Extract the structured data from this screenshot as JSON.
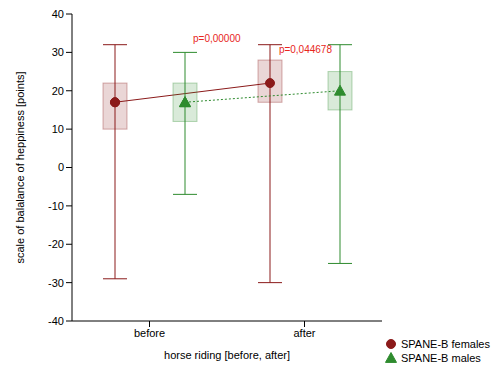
{
  "chart_data": {
    "type": "box",
    "x_label": "horse riding [before, after]",
    "y_label": "scale of balalance of heppiness [points]",
    "categories": [
      "before",
      "after"
    ],
    "ylim": [
      -40,
      40
    ],
    "yticks": [
      -40,
      -30,
      -20,
      -10,
      0,
      10,
      20,
      30,
      40
    ],
    "grid": false,
    "legend": "bottom right",
    "series": [
      {
        "name": "SPANE-B females",
        "color": "#8b1a1a",
        "marker": "circle",
        "line_style": "solid",
        "mean": [
          17,
          22
        ],
        "q1": [
          10,
          17
        ],
        "q3": [
          22,
          28
        ],
        "min": [
          -29,
          -30
        ],
        "max": [
          32,
          32
        ]
      },
      {
        "name": "SPANE-B males",
        "color": "#2e8b2e",
        "marker": "triangle",
        "line_style": "dotted",
        "mean": [
          17,
          20
        ],
        "q1": [
          12,
          15
        ],
        "q3": [
          22,
          25
        ],
        "min": [
          -7,
          -25
        ],
        "max": [
          30,
          32
        ]
      }
    ],
    "annotations": [
      {
        "category": "before",
        "text": "p=0,00000"
      },
      {
        "category": "after",
        "text": "p=0,044678"
      }
    ]
  }
}
